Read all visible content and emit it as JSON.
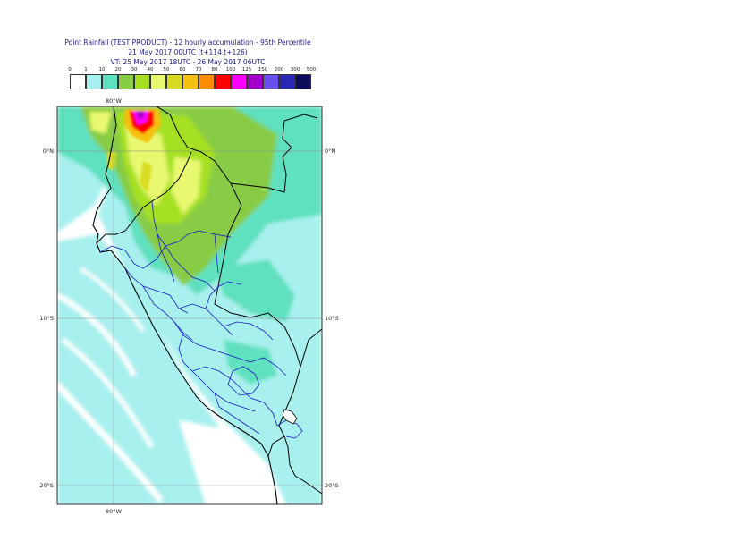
{
  "title": {
    "line1": "Point Rainfall (TEST PRODUCT) - 12 hourly accumulation - 95th Percentile",
    "line2": "21 May 2017 00UTC (t+114,t+126)",
    "line3": "VT: 25 May 2017 18UTC - 26 May 2017 06UTC"
  },
  "legend": {
    "ticks": [
      "0",
      "1",
      "10",
      "20",
      "30",
      "40",
      "50",
      "60",
      "70",
      "80",
      "100",
      "125",
      "150",
      "200",
      "300",
      "500"
    ],
    "colors": [
      "#ffffff",
      "#a8f0ee",
      "#5fe0be",
      "#88cc44",
      "#a6e020",
      "#e8f870",
      "#d8dc20",
      "#f5c010",
      "#ff8c00",
      "#ff0000",
      "#ff00ff",
      "#a000c8",
      "#6a4ff0",
      "#2828b4",
      "#0c0c5a"
    ]
  },
  "map": {
    "lon_top": "80°W",
    "lon_bottom": "80°W",
    "lat_labels": [
      "0°N",
      "10°S",
      "20°S"
    ]
  }
}
